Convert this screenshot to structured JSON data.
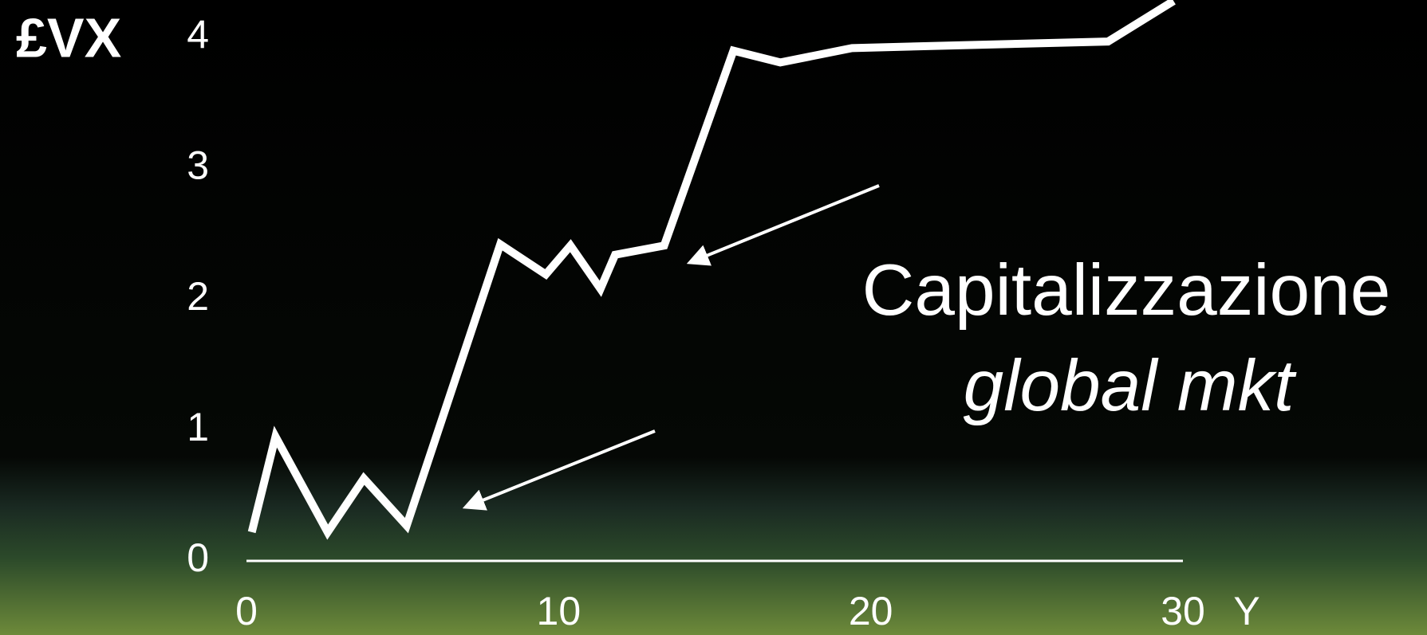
{
  "chart_data": {
    "type": "line",
    "y_label": "£VX",
    "x_label": "Y",
    "annotation": "Capitalizzazione",
    "annotation_sub": "global mkt",
    "x": [
      0.17,
      0.93,
      2.6,
      3.76,
      5.13,
      8.13,
      9.59,
      10.38,
      11.34,
      11.81,
      13.38,
      15.6,
      17.1,
      19.4,
      27.6,
      29.7
    ],
    "series": [
      {
        "color": "#ffffff",
        "values": [
          0.22,
          0.95,
          0.22,
          0.63,
          0.27,
          2.42,
          2.19,
          2.41,
          2.08,
          2.34,
          2.41,
          3.9,
          3.81,
          3.92,
          3.97,
          4.28
        ]
      }
    ],
    "xlim": [
      0,
      30
    ],
    "xticks": [
      0,
      10,
      20,
      30
    ],
    "ylim": [
      0,
      4.3
    ],
    "yticks": [
      0,
      1,
      2,
      3,
      4
    ],
    "grid": false
  }
}
